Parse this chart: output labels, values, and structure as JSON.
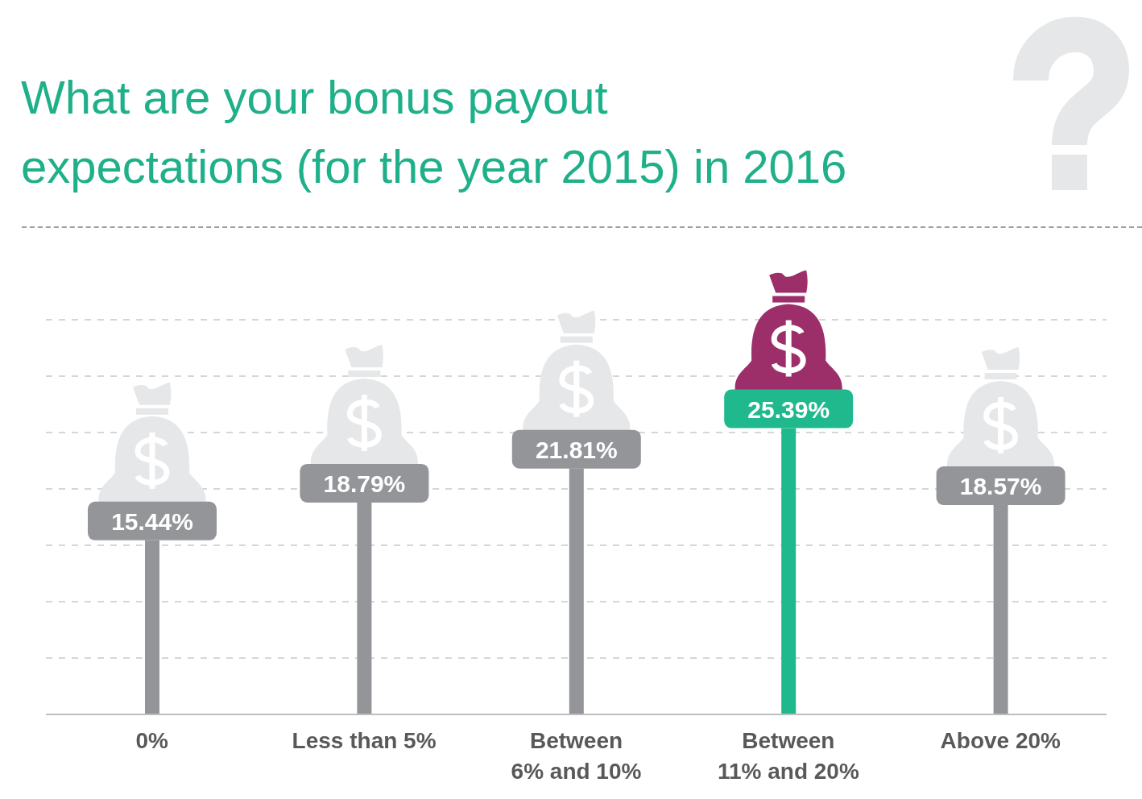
{
  "chart_data": {
    "type": "bar",
    "title": "What are your bonus payout expectations (for the year 2015) in 2016",
    "categories": [
      "0%",
      "Less than 5%",
      "Between 6% and 10%",
      "Between 11% and 20%",
      "Above 20%"
    ],
    "values": [
      15.44,
      18.79,
      21.81,
      25.39,
      18.57
    ],
    "colors": [
      "#939598",
      "#939598",
      "#939598",
      "#1fb98d",
      "#939598"
    ],
    "value_labels": [
      "15.44%",
      "18.79%",
      "21.81%",
      "25.39%",
      "18.57%"
    ],
    "ylim": [
      0,
      35
    ],
    "yticks": [
      {
        "value": 0,
        "label": null
      },
      {
        "value": 5,
        "label": null
      },
      {
        "value": 10,
        "label": null
      },
      {
        "value": 15,
        "label": null
      },
      {
        "value": 20,
        "label": null
      },
      {
        "value": 25,
        "label": null
      },
      {
        "value": 30,
        "label": null
      },
      {
        "value": 35,
        "label": null
      }
    ],
    "tick_labels": "x",
    "grid": "y"
  }
}
